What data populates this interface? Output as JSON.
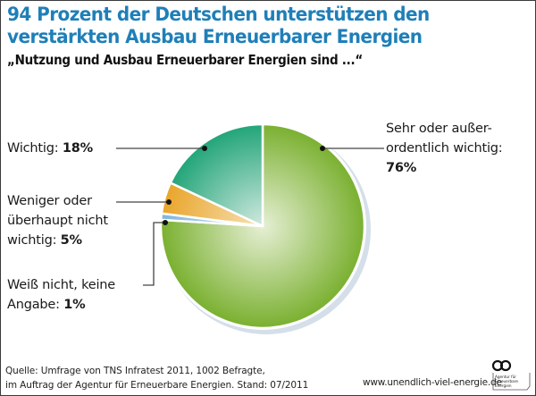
{
  "header": {
    "title_line1": "94 Prozent der Deutschen unterstützen den",
    "title_line2": "verstärkten Ausbau Erneuerbarer Energien",
    "subtitle": "„Nutzung und Ausbau Erneuerbarer Energien sind ...“"
  },
  "chart_data": {
    "type": "pie",
    "title": "94 Prozent der Deutschen unterstützen den verstärkten Ausbau Erneuerbarer Energien",
    "subtitle": "„Nutzung und Ausbau Erneuerbarer Energien sind ...“",
    "start_angle_deg": 0,
    "direction": "clockwise",
    "slices": [
      {
        "key": "sehr",
        "label": "Sehr oder außerordentlich wichtig",
        "value": 76,
        "value_label": "76%",
        "color": "#7ab030",
        "highlight": "#e6efd4"
      },
      {
        "key": "weiss",
        "label": "Weiß nicht, keine Angabe",
        "value": 1,
        "value_label": "1%",
        "color": "#7fb6da",
        "highlight": "#d8ebf6"
      },
      {
        "key": "weniger",
        "label": "Weniger oder überhaupt nicht wichtig",
        "value": 5,
        "value_label": "5%",
        "color": "#e9a52a",
        "highlight": "#f7e1b5"
      },
      {
        "key": "wichtig",
        "label": "Wichtig",
        "value": 18,
        "value_label": "18%",
        "color": "#22a578",
        "highlight": "#d2e9e0"
      }
    ]
  },
  "labels": {
    "sehr_line1": "Sehr oder außer-",
    "sehr_line2": "ordentlich wichtig:",
    "sehr_value": "76%",
    "wichtig_text": "Wichtig: ",
    "wichtig_value": "18%",
    "weniger_line1": "Weniger oder",
    "weniger_line2": "überhaupt nicht",
    "weniger_line3": "wichtig: ",
    "weniger_value": "5%",
    "weiss_line1": "Weiß nicht, keine",
    "weiss_line2": "Angabe: ",
    "weiss_value": "1%"
  },
  "footer": {
    "source_line1": "Quelle: Umfrage von TNS Infratest 2011, 1002 Befragte,",
    "source_line2": "im Auftrag der Agentur für Erneuerbare Energien. Stand: 07/2011",
    "website": "www.unendlich-viel-energie.de",
    "logo_text_1": "Agentur für",
    "logo_text_2": "Erneuerbare",
    "logo_text_3": "Energien",
    "logo_icon": "infinity-icon"
  }
}
